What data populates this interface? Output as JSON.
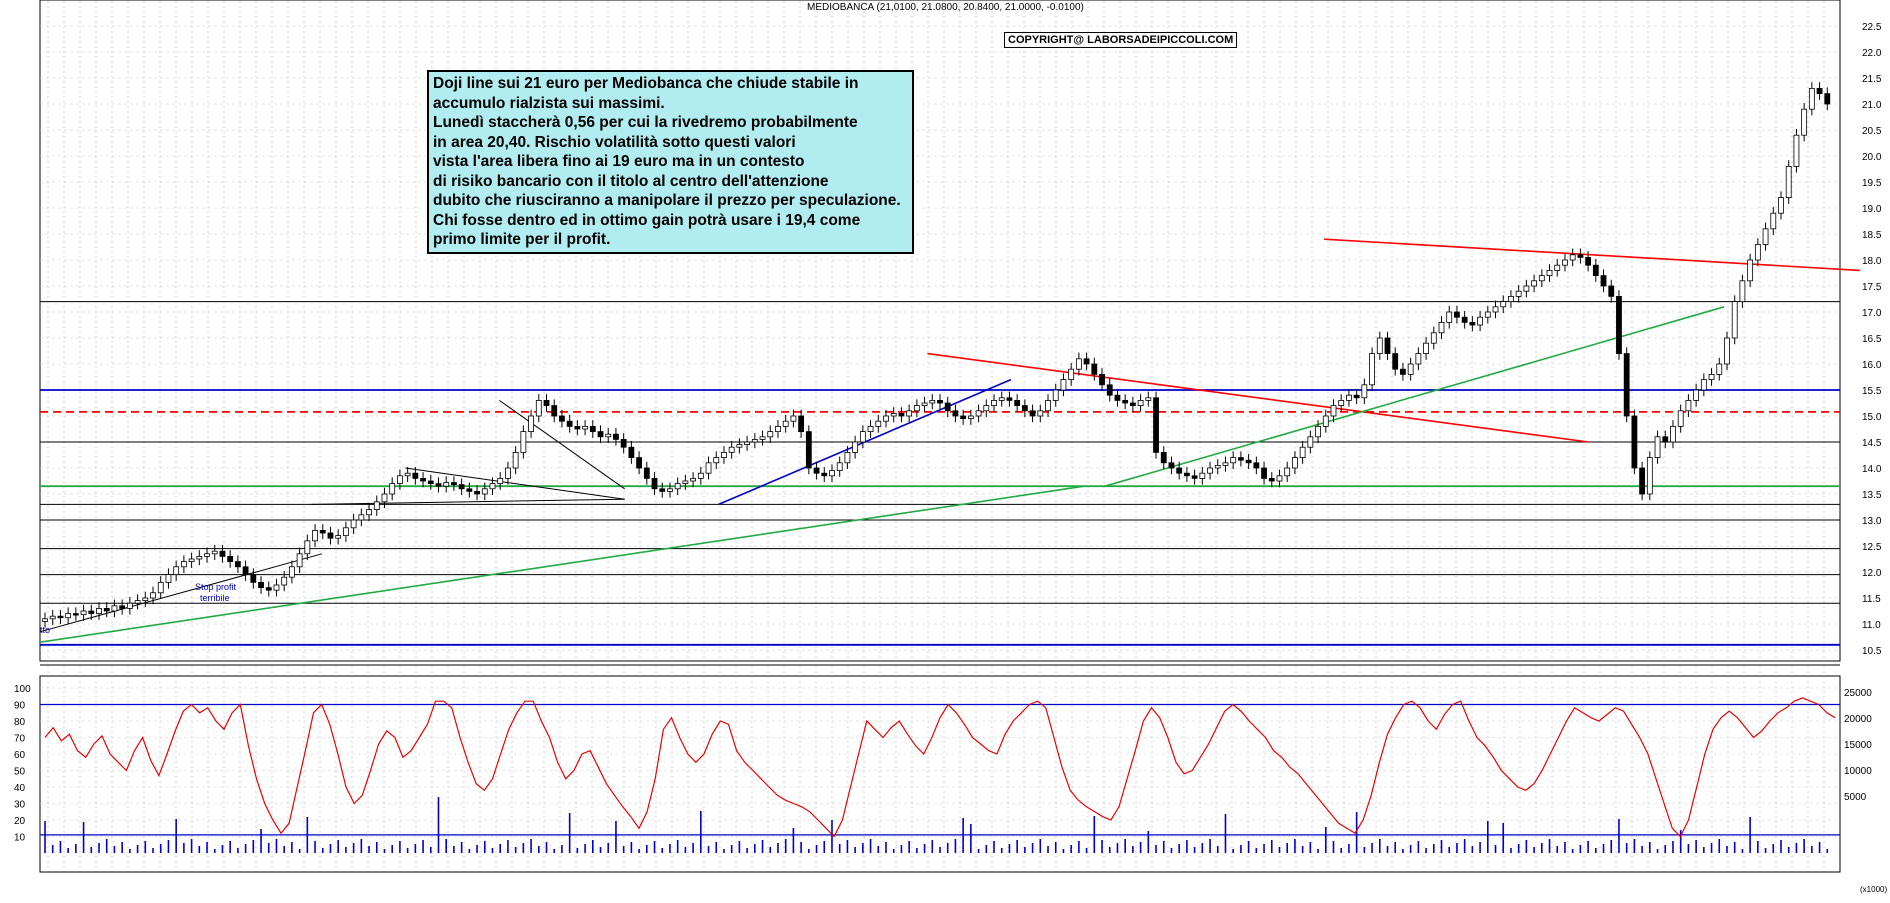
{
  "header": {
    "title": "MEDIOBANCA (21,0100, 21.0800, 20.8400, 21.0000, -0.0100)"
  },
  "copyright": "COPYRIGHT@ LABORSADEIPICCOLI.COM",
  "annotation": {
    "lines": [
      "Doji line sui 21 euro per Mediobanca che chiude stabile in",
      "accumulo rialzista sui massimi.",
      "Lunedì staccherà 0,56 per cui la rivedremo probabilmente",
      "in area 20,40. Rischio volatilità sotto questi valori",
      "vista l'area libera fino ai 19 euro ma in un contesto",
      "di risiko bancario con il titolo al centro dell'attenzione",
      "dubito che riusciranno a manipolare il prezzo per speculazione.",
      "Chi fosse dentro ed in ottimo gain potrà usare i 19,4 come",
      "primo limite per il profit."
    ]
  },
  "chart_labels": {
    "stop_profit": "Stop profit",
    "terribile": "terribile",
    "left_edge": "tto",
    "vol_scale_note": "(x1000)"
  },
  "chart_data": {
    "type": "candlestick",
    "title": "MEDIOBANCA",
    "ohlc_last": {
      "open": 21.01,
      "high": 21.08,
      "low": 20.84,
      "close": 21.0,
      "change": -0.01
    },
    "price_axis": {
      "min": 10.5,
      "max": 22.5,
      "step": 0.5,
      "ticks": [
        "22.5",
        "22.0",
        "21.5",
        "21.0",
        "20.5",
        "20.0",
        "19.5",
        "19.0",
        "18.5",
        "18.0",
        "17.5",
        "17.0",
        "16.5",
        "16.0",
        "15.5",
        "15.0",
        "14.5",
        "14.0",
        "13.5",
        "13.0",
        "12.5",
        "12.0",
        "11.5",
        "11.0",
        "10.5"
      ]
    },
    "oscillator_axis": {
      "min": 0,
      "max": 100,
      "ticks": [
        "100",
        "90",
        "80",
        "70",
        "60",
        "50",
        "40",
        "30",
        "20",
        "10"
      ]
    },
    "volume_axis": {
      "ticks": [
        "25000",
        "20000",
        "15000",
        "10000",
        "5000"
      ]
    },
    "horizontal_levels": [
      {
        "price": 15.5,
        "color": "#0000cc"
      },
      {
        "price": 10.6,
        "color": "#0000cc"
      },
      {
        "price": 15.08,
        "color": "#ff0000",
        "dashed": true
      },
      {
        "price": 13.65,
        "color": "#22aa44"
      },
      {
        "price": 14.5,
        "color": "#000000"
      },
      {
        "price": 17.2,
        "color": "#000000"
      },
      {
        "price": 13.3,
        "color": "#000000"
      },
      {
        "price": 13.0,
        "color": "#000000"
      },
      {
        "price": 12.45,
        "color": "#000000"
      },
      {
        "price": 11.95,
        "color": "#000000"
      },
      {
        "price": 11.4,
        "color": "#000000"
      }
    ],
    "trendlines": [
      {
        "from": [
          0.0,
          10.65
        ],
        "to": [
          1.0,
          13.65
        ],
        "color": "#22aa44"
      },
      {
        "from": [
          0.0,
          10.85
        ],
        "to": [
          0.27,
          12.35
        ],
        "color": "#000000"
      },
      {
        "from": [
          0.35,
          14.0
        ],
        "to": [
          0.56,
          13.4
        ],
        "color": "#000000"
      },
      {
        "from": [
          0.44,
          15.3
        ],
        "to": [
          0.56,
          13.6
        ],
        "color": "#000000"
      },
      {
        "from": [
          0.26,
          13.3
        ],
        "to": [
          0.56,
          13.4
        ],
        "color": "#000000"
      },
      {
        "from": [
          0.65,
          13.3
        ],
        "to": [
          0.93,
          15.7
        ],
        "color": "#0000cc"
      },
      {
        "from": [
          0.85,
          16.2
        ],
        "to": [
          1.1,
          14.5
        ],
        "color": "#ff0000"
      },
      {
        "from": [
          1.02,
          13.65
        ],
        "to": [
          1.23,
          17.1
        ],
        "color": "#22aa44"
      },
      {
        "from": [
          1.23,
          18.4
        ],
        "to": [
          1.36,
          17.8
        ],
        "color": "#ff0000"
      }
    ],
    "closes": [
      11.1,
      11.15,
      11.12,
      11.2,
      11.18,
      11.25,
      11.2,
      11.3,
      11.25,
      11.35,
      11.3,
      11.4,
      11.45,
      11.5,
      11.6,
      11.8,
      11.95,
      12.1,
      12.2,
      12.25,
      12.3,
      12.35,
      12.4,
      12.3,
      12.2,
      12.1,
      11.95,
      11.8,
      11.7,
      11.65,
      11.75,
      11.9,
      12.1,
      12.35,
      12.6,
      12.8,
      12.75,
      12.65,
      12.7,
      12.85,
      13.0,
      13.1,
      13.2,
      13.35,
      13.5,
      13.7,
      13.85,
      13.9,
      13.8,
      13.75,
      13.7,
      13.65,
      13.72,
      13.68,
      13.6,
      13.55,
      13.5,
      13.6,
      13.7,
      13.8,
      14.0,
      14.3,
      14.7,
      15.0,
      15.3,
      15.2,
      15.0,
      14.9,
      14.8,
      14.75,
      14.8,
      14.7,
      14.6,
      14.65,
      14.55,
      14.4,
      14.2,
      14.0,
      13.8,
      13.6,
      13.55,
      13.6,
      13.7,
      13.75,
      13.8,
      13.9,
      14.1,
      14.2,
      14.3,
      14.4,
      14.45,
      14.5,
      14.55,
      14.6,
      14.7,
      14.8,
      14.9,
      15.0,
      14.7,
      14.0,
      13.9,
      13.85,
      13.95,
      14.1,
      14.3,
      14.5,
      14.7,
      14.8,
      14.9,
      15.0,
      15.05,
      15.0,
      15.1,
      15.2,
      15.25,
      15.3,
      15.25,
      15.1,
      15.0,
      14.95,
      15.0,
      15.1,
      15.2,
      15.3,
      15.35,
      15.3,
      15.2,
      15.1,
      15.0,
      15.1,
      15.3,
      15.5,
      15.7,
      15.9,
      16.1,
      16.0,
      15.8,
      15.6,
      15.4,
      15.3,
      15.25,
      15.2,
      15.3,
      15.35,
      14.3,
      14.1,
      14.0,
      13.9,
      13.85,
      13.8,
      13.9,
      14.0,
      14.05,
      14.1,
      14.2,
      14.15,
      14.1,
      14.0,
      13.8,
      13.75,
      13.85,
      14.0,
      14.2,
      14.4,
      14.6,
      14.8,
      15.0,
      15.2,
      15.3,
      15.4,
      15.35,
      15.6,
      16.2,
      16.5,
      16.2,
      15.9,
      15.8,
      16.0,
      16.2,
      16.4,
      16.6,
      16.8,
      17.0,
      16.9,
      16.8,
      16.75,
      16.9,
      17.0,
      17.1,
      17.2,
      17.3,
      17.4,
      17.5,
      17.6,
      17.7,
      17.8,
      17.9,
      18.0,
      18.1,
      18.05,
      17.9,
      17.7,
      17.5,
      17.3,
      16.2,
      15.0,
      14.0,
      13.5,
      14.2,
      14.6,
      14.5,
      14.8,
      15.1,
      15.3,
      15.5,
      15.7,
      15.8,
      16.0,
      16.5,
      17.2,
      17.6,
      18.0,
      18.3,
      18.6,
      18.9,
      19.2,
      19.8,
      20.4,
      20.9,
      21.3,
      21.2,
      21.0
    ],
    "oscillator": [
      70,
      76,
      68,
      72,
      62,
      58,
      66,
      71,
      60,
      55,
      50,
      62,
      70,
      56,
      47,
      60,
      74,
      86,
      90,
      85,
      88,
      80,
      75,
      85,
      90,
      65,
      45,
      30,
      20,
      12,
      18,
      40,
      62,
      85,
      90,
      78,
      60,
      40,
      30,
      35,
      50,
      66,
      74,
      70,
      58,
      62,
      70,
      78,
      92,
      92,
      88,
      70,
      55,
      42,
      38,
      45,
      60,
      75,
      85,
      92,
      92,
      80,
      70,
      55,
      45,
      50,
      60,
      62,
      52,
      42,
      35,
      28,
      22,
      15,
      25,
      45,
      75,
      82,
      70,
      60,
      55,
      60,
      72,
      80,
      78,
      62,
      55,
      50,
      45,
      40,
      35,
      32,
      30,
      28,
      25,
      20,
      15,
      10,
      20,
      40,
      60,
      80,
      75,
      70,
      76,
      80,
      72,
      65,
      60,
      70,
      82,
      90,
      85,
      78,
      70,
      66,
      62,
      60,
      72,
      80,
      85,
      90,
      92,
      88,
      70,
      52,
      38,
      32,
      28,
      25,
      22,
      20,
      28,
      45,
      62,
      80,
      88,
      82,
      70,
      55,
      48,
      50,
      58,
      66,
      76,
      86,
      90,
      86,
      80,
      75,
      70,
      62,
      58,
      52,
      48,
      42,
      36,
      30,
      24,
      18,
      15,
      12,
      20,
      35,
      55,
      72,
      82,
      90,
      92,
      88,
      80,
      75,
      84,
      90,
      92,
      80,
      70,
      65,
      58,
      50,
      45,
      40,
      38,
      42,
      50,
      60,
      70,
      80,
      88,
      85,
      82,
      80,
      84,
      88,
      86,
      78,
      70,
      60,
      45,
      30,
      15,
      10,
      20,
      40,
      60,
      75,
      82,
      86,
      82,
      76,
      70,
      74,
      80,
      85,
      88,
      92,
      94,
      92,
      90,
      85,
      82
    ]
  }
}
